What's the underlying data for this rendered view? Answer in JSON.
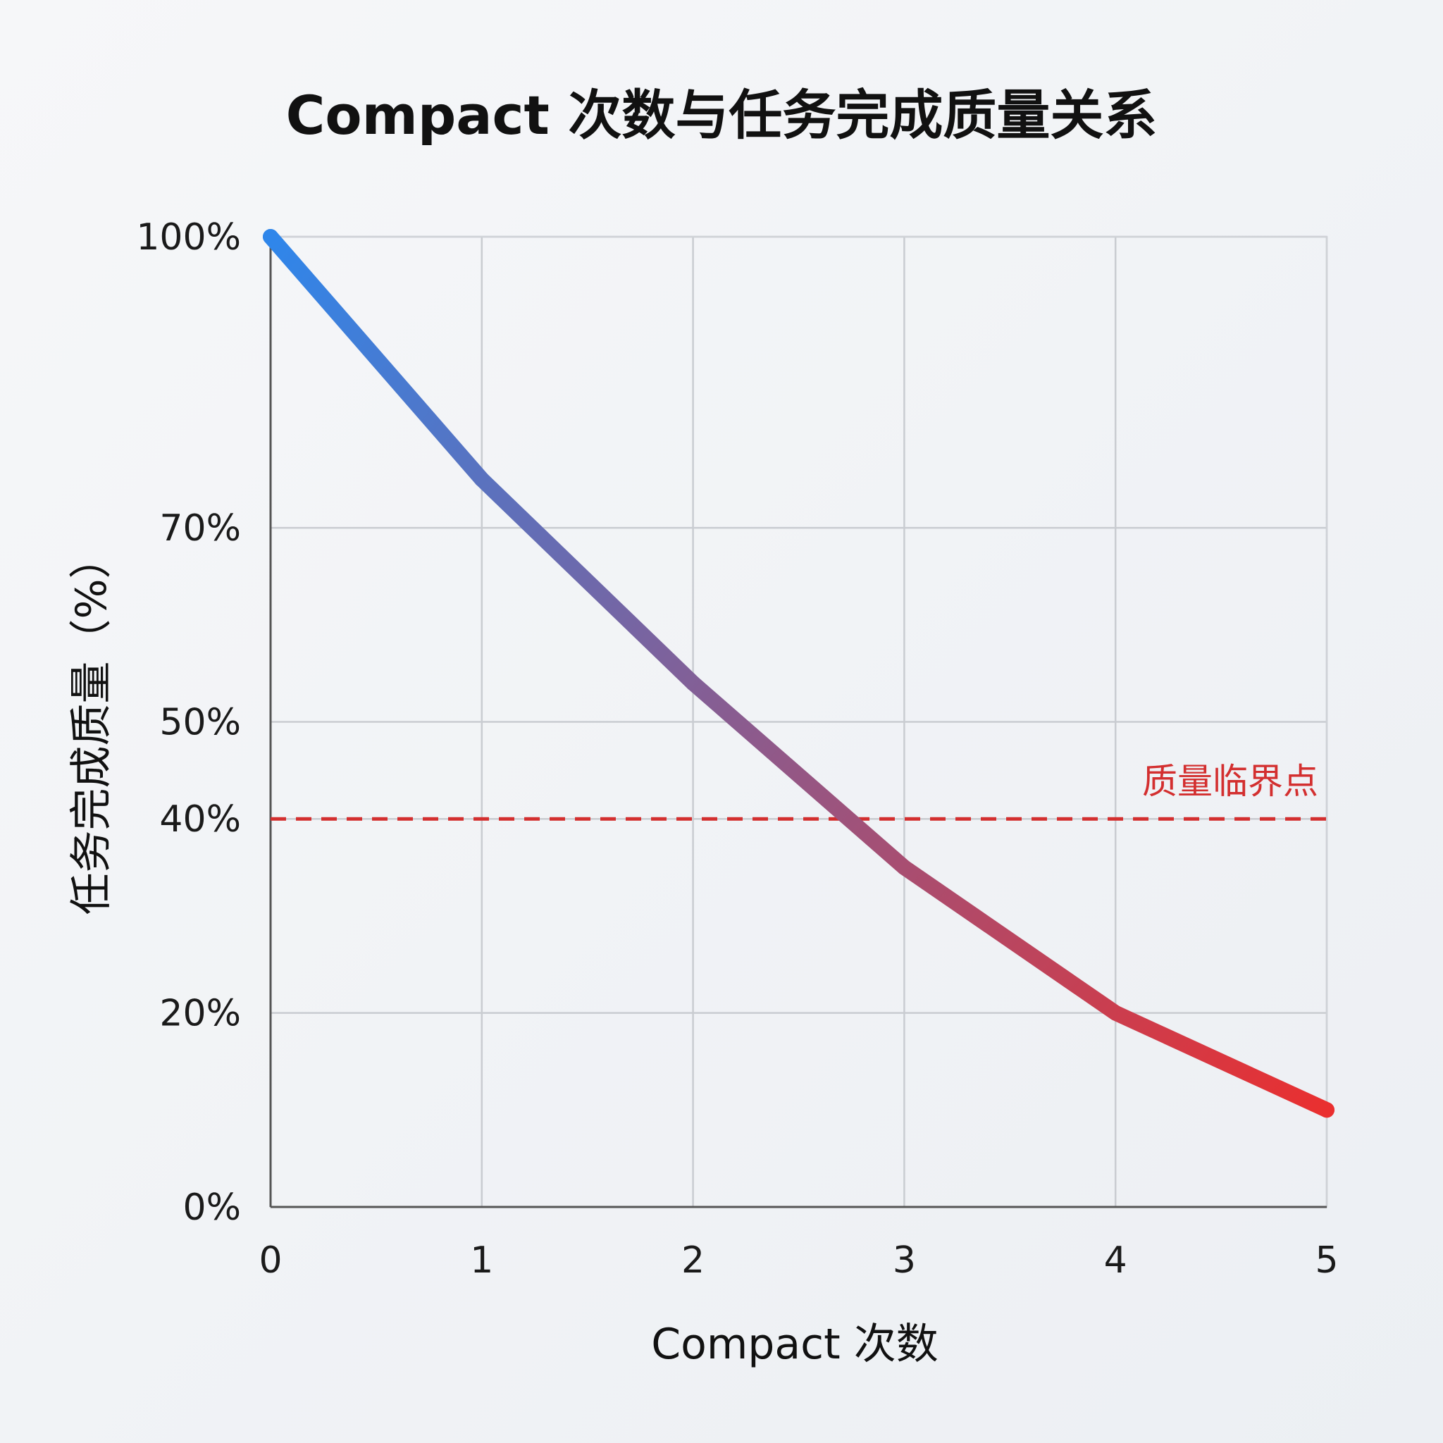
{
  "chart_data": {
    "type": "line",
    "title": "Compact 次数与任务完成质量关系",
    "xlabel": "Compact 次数",
    "ylabel": "任务完成质量（%）",
    "x": [
      0,
      1,
      2,
      3,
      4,
      5
    ],
    "xlim": [
      0,
      5
    ],
    "ylim": [
      0,
      100
    ],
    "y_ticks": [
      0,
      20,
      40,
      50,
      70,
      100
    ],
    "y_tick_labels": [
      "0%",
      "20%",
      "40%",
      "50%",
      "70%",
      "100%"
    ],
    "x_tick_labels": [
      "0",
      "1",
      "2",
      "3",
      "4",
      "5"
    ],
    "grid": true,
    "series": [
      {
        "values": [
          100,
          75,
          54,
          35,
          20,
          10
        ]
      }
    ],
    "reference_line": {
      "y": 40,
      "label": "质量临界点",
      "color": "#d32f2f",
      "style": "dashed"
    },
    "colors": {
      "line_start": "#2f86ea",
      "line_end": "#ea2f2f"
    }
  }
}
